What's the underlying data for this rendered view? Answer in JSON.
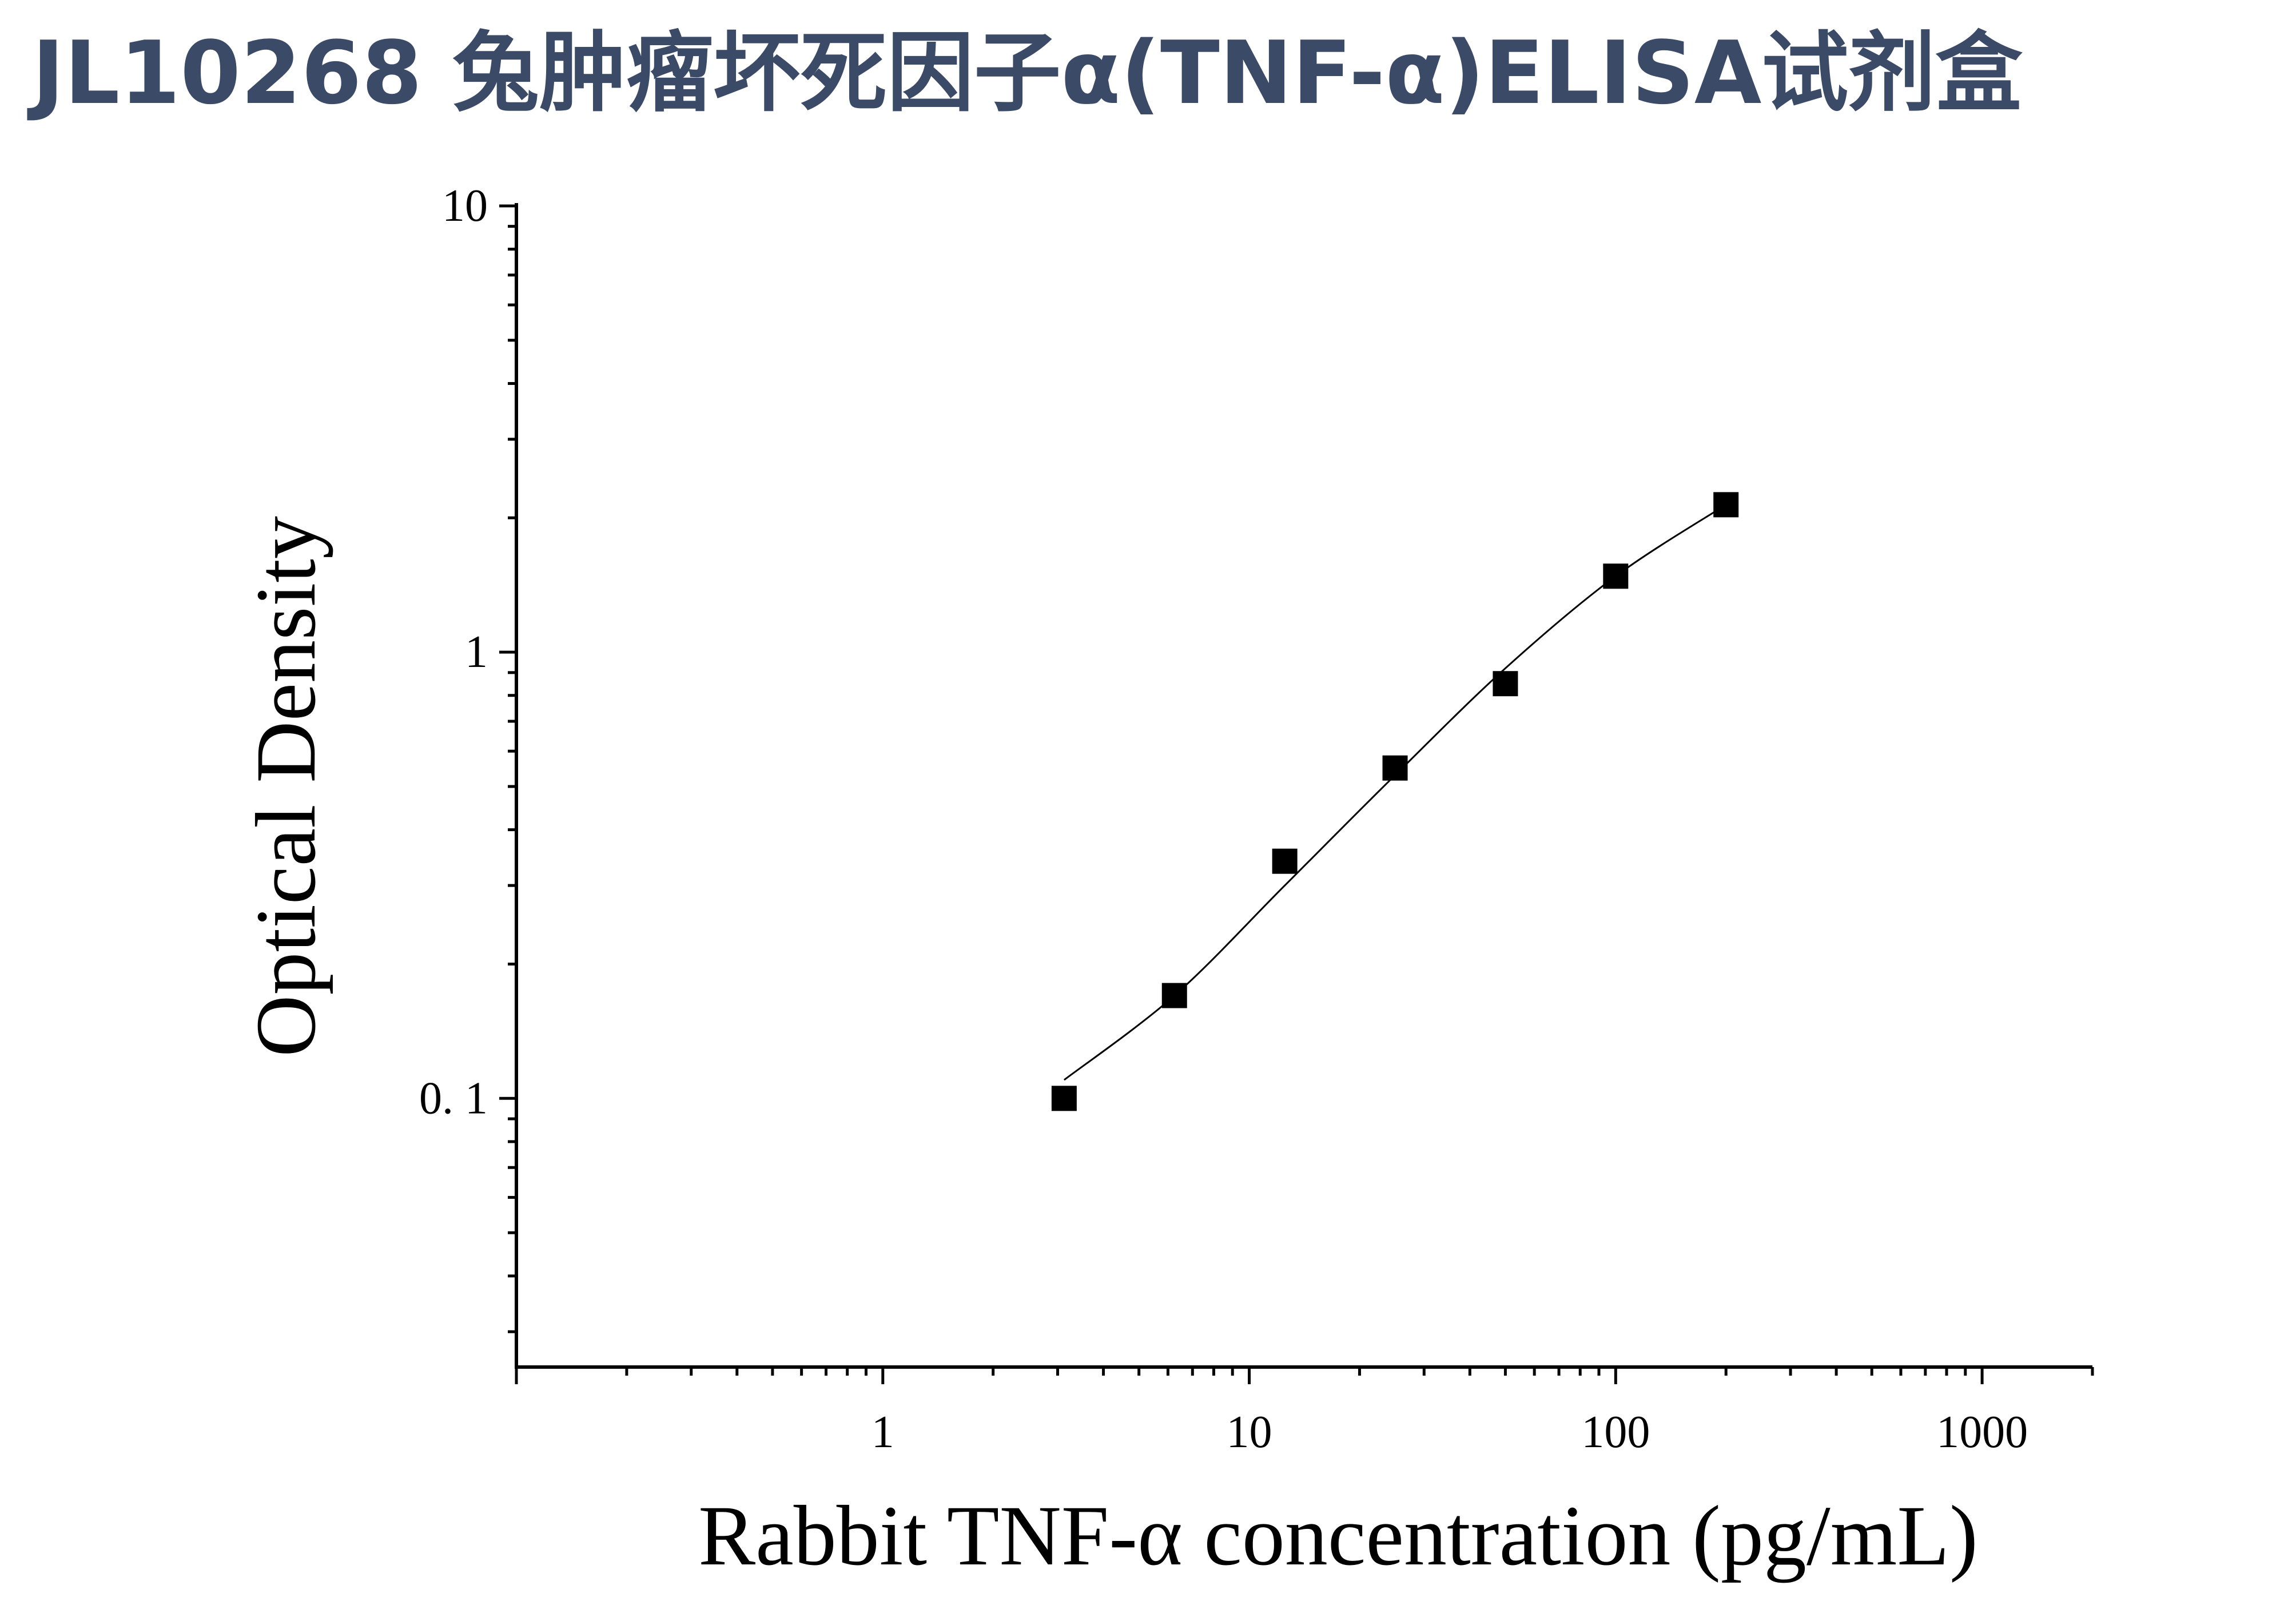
{
  "page": {
    "title": "JL10268 兔肿瘤坏死因子α(TNF-α)ELISA试剂盒",
    "title_color": "#3b4a67"
  },
  "chart_data": {
    "type": "scatter",
    "title": "",
    "xlabel": "Rabbit TNF-α concentration (pg/mL)",
    "ylabel": "Optical Density",
    "x_scale": "log",
    "y_scale": "log",
    "xlim": [
      0.1,
      2000
    ],
    "ylim": [
      0.025,
      10
    ],
    "x_ticks": [
      {
        "value": 1,
        "label": "1"
      },
      {
        "value": 10,
        "label": "10"
      },
      {
        "value": 100,
        "label": "100"
      },
      {
        "value": 1000,
        "label": "1000"
      }
    ],
    "y_ticks": [
      {
        "value": 0.1,
        "label": "0. 1"
      },
      {
        "value": 1,
        "label": "1"
      },
      {
        "value": 10,
        "label": "10"
      }
    ],
    "grid": false,
    "legend": "none",
    "series": [
      {
        "marker": "square",
        "color": "#000000",
        "x": [
          3.125,
          6.25,
          12.5,
          25,
          50,
          100,
          200
        ],
        "y": [
          0.1,
          0.17,
          0.34,
          0.55,
          0.85,
          1.48,
          2.14
        ]
      }
    ],
    "fit_curve": {
      "color": "#000000",
      "x": [
        3.125,
        6.25,
        12.5,
        25,
        50,
        100,
        200
      ],
      "y": [
        0.11,
        0.17,
        0.3,
        0.53,
        0.92,
        1.48,
        2.14
      ]
    }
  }
}
